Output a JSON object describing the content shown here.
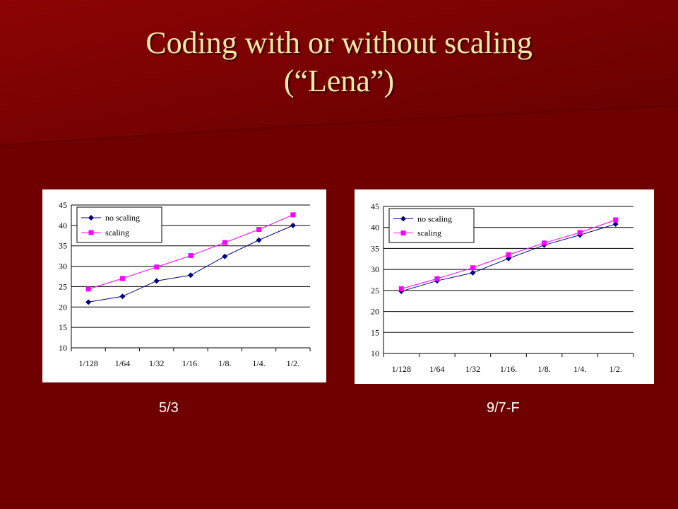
{
  "slide": {
    "title_line1": "Coding with or without scaling",
    "title_line2": "(“Lena”)"
  },
  "colors": {
    "background": "#6e0000",
    "title": "#f5eaa8",
    "series_no_scaling": "#000080",
    "series_scaling": "#ff00ff"
  },
  "chart_data": [
    {
      "type": "line",
      "caption": "5/3",
      "categories": [
        "1/128",
        "1/64",
        "1/32",
        "1/16.",
        "1/8.",
        "1/4.",
        "1/2."
      ],
      "series": [
        {
          "name": "no scaling",
          "marker": "diamond",
          "values": [
            21.2,
            22.6,
            26.4,
            27.8,
            32.4,
            36.4,
            40.0
          ]
        },
        {
          "name": "scaling",
          "marker": "square",
          "values": [
            24.4,
            27.0,
            29.8,
            32.6,
            35.8,
            39.0,
            42.6
          ]
        }
      ],
      "ylim": [
        10,
        45
      ],
      "yticks": [
        "10",
        "15",
        "20",
        "25",
        "30",
        "35",
        "40",
        "45"
      ],
      "grid": true,
      "legend": "top-left"
    },
    {
      "type": "line",
      "caption": "9/7-F",
      "categories": [
        "1/128",
        "1/64",
        "1/32",
        "1/16.",
        "1/8.",
        "1/4.",
        "1/2."
      ],
      "series": [
        {
          "name": "no scaling",
          "marker": "diamond",
          "values": [
            24.8,
            27.3,
            29.2,
            32.6,
            35.8,
            38.2,
            40.8
          ]
        },
        {
          "name": "scaling",
          "marker": "square",
          "values": [
            25.4,
            27.8,
            30.4,
            33.5,
            36.3,
            38.8,
            41.8
          ]
        }
      ],
      "ylim": [
        10,
        45
      ],
      "yticks": [
        "10",
        "15",
        "20",
        "25",
        "30",
        "35",
        "40",
        "45"
      ],
      "grid": true,
      "legend": "top-left"
    }
  ]
}
